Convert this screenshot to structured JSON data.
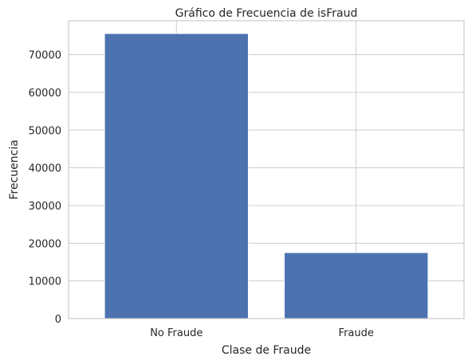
{
  "chart_data": {
    "type": "bar",
    "title": "Gráfico de Frecuencia de isFraud",
    "xlabel": "Clase de Fraude",
    "ylabel": "Frecuencia",
    "categories": [
      "No Fraude",
      "Fraude"
    ],
    "values": [
      75600,
      17500
    ],
    "ylim": [
      0,
      79000
    ],
    "yticks": [
      0,
      10000,
      20000,
      30000,
      40000,
      50000,
      60000,
      70000
    ],
    "grid": true,
    "bar_color": "#4c72b0",
    "grid_color": "#cccccc"
  }
}
